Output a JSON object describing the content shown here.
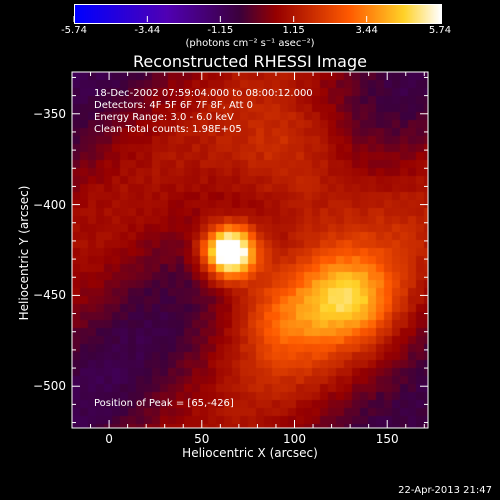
{
  "colorbar": {
    "tick_labels": [
      "-5.74",
      "-3.44",
      "-1.15",
      "1.15",
      "3.44",
      "5.74"
    ],
    "min": -5.74,
    "max": 5.74,
    "units_label": "(photons cm⁻² s⁻¹ asec⁻²)"
  },
  "chart_data": {
    "type": "heatmap",
    "title": "Reconstructed RHESSI Image",
    "xlabel": "Heliocentric X (arcsec)",
    "ylabel": "Heliocentric Y (arcsec)",
    "xlim": [
      -20,
      172
    ],
    "ylim": [
      -523,
      -327
    ],
    "x_ticks": [
      0,
      50,
      100,
      150
    ],
    "y_ticks": [
      -350,
      -400,
      -450,
      -500
    ],
    "x_tick_labels": [
      "0",
      "50",
      "100",
      "150"
    ],
    "y_tick_labels": [
      "−350",
      "−400",
      "−450",
      "−500"
    ],
    "colormap": "red-temperature",
    "peak": [
      65,
      -426
    ],
    "peak_value": 5.74,
    "sources": [
      {
        "x": 65,
        "y": -426,
        "amp": 4.4,
        "sigma": 10
      },
      {
        "x": 130,
        "y": -452,
        "amp": 1.6,
        "sigma": 16
      },
      {
        "x": 95,
        "y": -462,
        "amp": 0.9,
        "sigma": 18
      },
      {
        "x": 100,
        "y": -372,
        "amp": 0.9,
        "sigma": 24
      }
    ]
  },
  "annotations": {
    "time_range": "18-Dec-2002 07:59:04.000 to 08:00:12.000",
    "detectors": "Detectors: 4F 5F 6F 7F 8F, Att 0",
    "energy_range": "Energy Range: 3.0 - 6.0 keV",
    "clean_counts": "Clean    Total counts: 1.98E+05",
    "peak_position": "Position of Peak = [65,-426]"
  },
  "footer": {
    "timestamp": "22-Apr-2013 21:47"
  }
}
